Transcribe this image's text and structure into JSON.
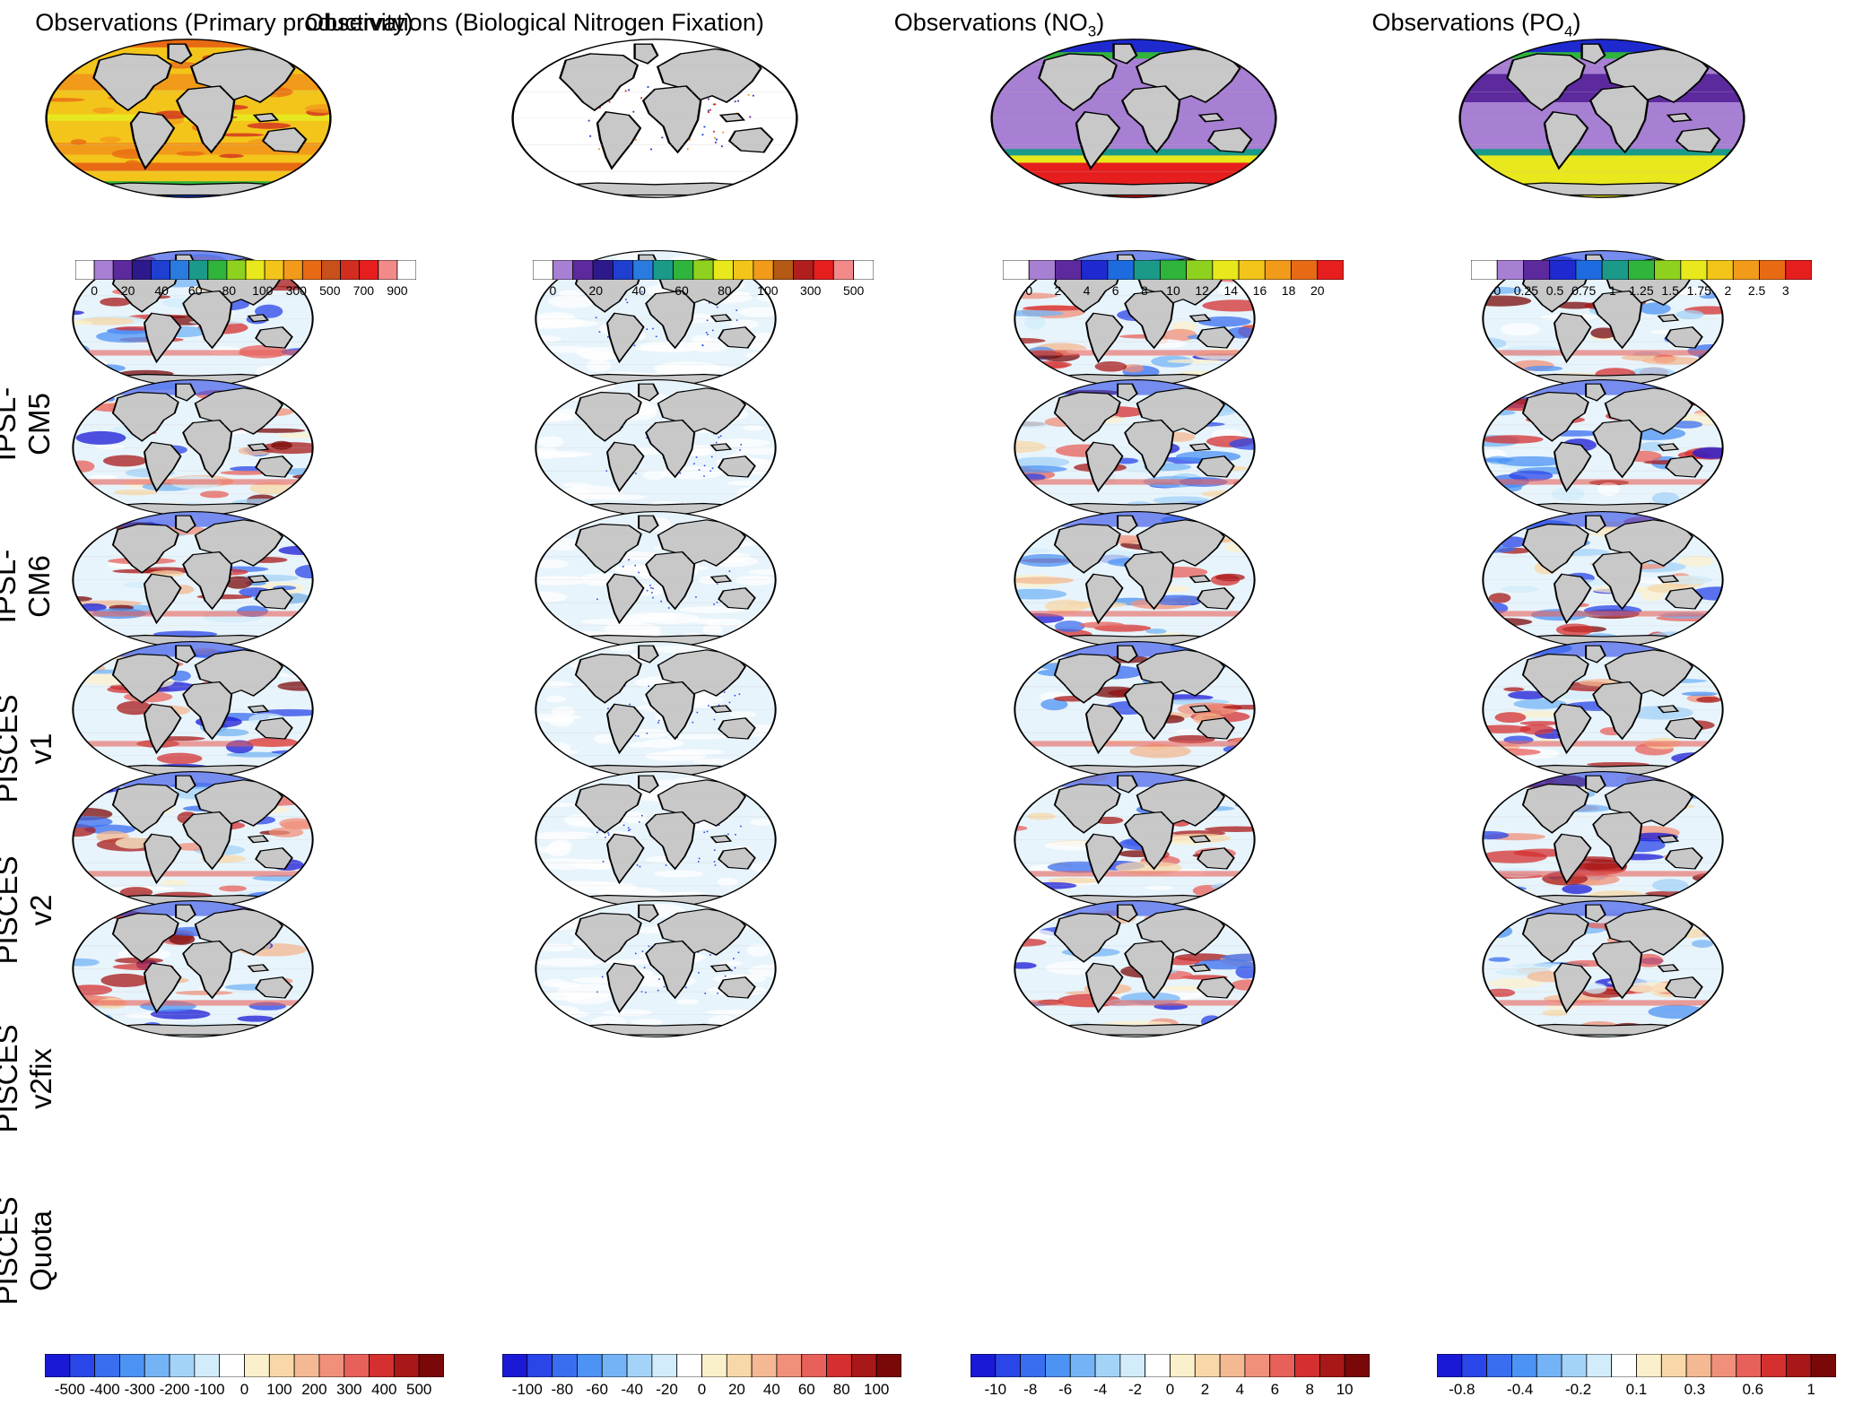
{
  "columns": [
    {
      "title_main": "Observations (Primary productivity)",
      "title_sub": "",
      "title_tail": ""
    },
    {
      "title_main": "Observations (Biological Nitrogen Fixation)",
      "title_sub": "",
      "title_tail": ""
    },
    {
      "title_main": "Observations (NO",
      "title_sub": "3",
      "title_tail": ")"
    },
    {
      "title_main": "Observations (PO",
      "title_sub": "4",
      "title_tail": ")"
    }
  ],
  "rows": [
    {
      "line1": "IPSL-CM5",
      "line2": ""
    },
    {
      "line1": "IPSL-CM6",
      "line2": ""
    },
    {
      "line1": "PISCES",
      "line2": "v1"
    },
    {
      "line1": "PISCES",
      "line2": "v2"
    },
    {
      "line1": "PISCES",
      "line2": "v2fix"
    },
    {
      "line1": "PISCES",
      "line2": "Quota"
    }
  ],
  "obs_colorbars": [
    {
      "labels": [
        "0",
        "20",
        "40",
        "60",
        "80",
        "100",
        "300",
        "500",
        "700",
        "900"
      ],
      "colors": [
        "#ffffff",
        "#a77fd3",
        "#5c2a9d",
        "#2c1a8c",
        "#1e3fcf",
        "#2a7be0",
        "#1b9a8a",
        "#2fb43c",
        "#8fd11f",
        "#e8e81c",
        "#f3c51b",
        "#f29a1a",
        "#e86a14",
        "#c8501a",
        "#d22d1f",
        "#e61e1e",
        "#f38a8a",
        "#ffffff"
      ]
    },
    {
      "labels": [
        "0",
        "20",
        "40",
        "60",
        "80",
        "100",
        "300",
        "500"
      ],
      "colors": [
        "#ffffff",
        "#a77fd3",
        "#5c2a9d",
        "#2c1a8c",
        "#1e3fcf",
        "#2a7be0",
        "#1b9a8a",
        "#2fb43c",
        "#8fd11f",
        "#e8e81c",
        "#f3c51b",
        "#f29a1a",
        "#b45a14",
        "#b01e1e",
        "#e61e1e",
        "#f38a8a",
        "#ffffff"
      ]
    },
    {
      "labels": [
        "0",
        "2",
        "4",
        "6",
        "8",
        "10",
        "12",
        "14",
        "16",
        "18",
        "20"
      ],
      "colors": [
        "#ffffff",
        "#a77fd3",
        "#5c2a9d",
        "#1e2ad0",
        "#1e6be0",
        "#1b9a8a",
        "#2fb43c",
        "#8fd11f",
        "#e8e81c",
        "#f3c51b",
        "#f29a1a",
        "#e86a14",
        "#e61e1e"
      ]
    },
    {
      "labels": [
        "0",
        "0.25",
        "0.5",
        "0.75",
        "1",
        "1.25",
        "1.5",
        "1.75",
        "2",
        "2.5",
        "3"
      ],
      "colors": [
        "#ffffff",
        "#a77fd3",
        "#5c2a9d",
        "#1e2ad0",
        "#1e6be0",
        "#1b9a8a",
        "#2fb43c",
        "#8fd11f",
        "#e8e81c",
        "#f3c51b",
        "#f29a1a",
        "#e86a14",
        "#e61e1e"
      ]
    }
  ],
  "diff_colorbars": [
    {
      "labels": [
        "-500",
        "-400",
        "-300",
        "-200",
        "-100",
        "0",
        "100",
        "200",
        "300",
        "400",
        "500"
      ]
    },
    {
      "labels": [
        "-100",
        "-80",
        "-60",
        "-40",
        "-20",
        "0",
        "20",
        "40",
        "60",
        "80",
        "100"
      ]
    },
    {
      "labels": [
        "-10",
        "-8",
        "-6",
        "-4",
        "-2",
        "0",
        "2",
        "4",
        "6",
        "8",
        "10"
      ]
    },
    {
      "labels": [
        "-0.8",
        "-0.4",
        "-0.2",
        "0.1",
        "0.3",
        "0.6",
        "1"
      ]
    }
  ],
  "diff_colors": [
    "#1a1ad6",
    "#2a46e8",
    "#3a6ef0",
    "#4c93f4",
    "#74b4f6",
    "#a4d3f8",
    "#d2ecfb",
    "#ffffff",
    "#fbf0cc",
    "#f8d8a8",
    "#f4b892",
    "#f0907a",
    "#e8605a",
    "#d43030",
    "#a81818",
    "#7a0808"
  ],
  "colors": {
    "land": "#c8c8c8",
    "coast": "#000000"
  }
}
